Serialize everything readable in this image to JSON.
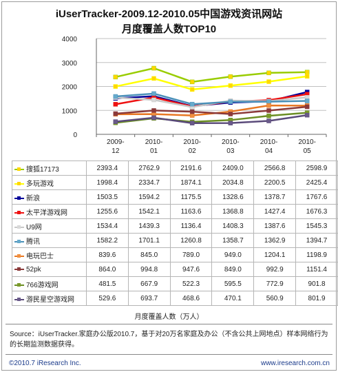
{
  "title_line1": "iUserTracker-2009.12-2010.05中国游戏资讯网站",
  "title_line2": "月度覆盖人数TOP10",
  "chart_data": {
    "type": "line",
    "title": "iUserTracker-2009.12-2010.05中国游戏资讯网站 月度覆盖人数TOP10",
    "categories": [
      "2009-12",
      "2010-01",
      "2010-02",
      "2010-03",
      "2010-04",
      "2010-05"
    ],
    "category_parts": [
      [
        "2009-",
        "12"
      ],
      [
        "2010-",
        "01"
      ],
      [
        "2010-",
        "02"
      ],
      [
        "2010-",
        "03"
      ],
      [
        "2010-",
        "04"
      ],
      [
        "2010-",
        "05"
      ]
    ],
    "y_ticks": [
      "0",
      "1000",
      "2000",
      "3000",
      "4000"
    ],
    "ylim": [
      0,
      4000
    ],
    "xlabel": "月度覆盖人数（万人）",
    "ylabel": "",
    "grid": true,
    "legend": "table-below",
    "series": [
      {
        "name": "搜狐17173",
        "color": "#99cc00",
        "marker": "#ffd700",
        "values": [
          2393.4,
          2762.9,
          2191.6,
          2409.0,
          2566.8,
          2598.9
        ],
        "labels": [
          "2393.4",
          "2762.9",
          "2191.6",
          "2409.0",
          "2566.8",
          "2598.9"
        ]
      },
      {
        "name": "多玩游戏",
        "color": "#ffff00",
        "marker": "#ffd700",
        "values": [
          1998.4,
          2334.7,
          1874.1,
          2034.8,
          2200.5,
          2425.4
        ],
        "labels": [
          "1998.4",
          "2334.7",
          "1874.1",
          "2034.8",
          "2200.5",
          "2425.4"
        ]
      },
      {
        "name": "新浪",
        "color": "#000099",
        "marker": "#000099",
        "values": [
          1503.5,
          1594.2,
          1175.5,
          1328.6,
          1378.7,
          1767.6
        ],
        "labels": [
          "1503.5",
          "1594.2",
          "1175.5",
          "1328.6",
          "1378.7",
          "1767.6"
        ]
      },
      {
        "name": "太平洋游戏网",
        "color": "#ee1111",
        "marker": "#ee1111",
        "values": [
          1255.6,
          1542.1,
          1163.6,
          1368.8,
          1427.4,
          1676.3
        ],
        "labels": [
          "1255.6",
          "1542.1",
          "1163.6",
          "1368.8",
          "1427.4",
          "1676.3"
        ]
      },
      {
        "name": "U9网",
        "color": "#c8c8c8",
        "marker": "#d9d9d9",
        "values": [
          1534.4,
          1439.3,
          1136.4,
          1408.3,
          1387.6,
          1545.3
        ],
        "labels": [
          "1534.4",
          "1439.3",
          "1136.4",
          "1408.3",
          "1387.6",
          "1545.3"
        ]
      },
      {
        "name": "腾讯",
        "color": "#4a90b8",
        "marker": "#66aacc",
        "values": [
          1582.2,
          1701.1,
          1260.8,
          1358.7,
          1362.9,
          1394.7
        ],
        "labels": [
          "1582.2",
          "1701.1",
          "1260.8",
          "1358.7",
          "1362.9",
          "1394.7"
        ]
      },
      {
        "name": "电玩巴士",
        "color": "#e87722",
        "marker": "#f09040",
        "values": [
          839.6,
          845.0,
          789.0,
          949.0,
          1204.1,
          1198.9
        ],
        "labels": [
          "839.6",
          "845.0",
          "789.0",
          "949.0",
          "1204.1",
          "1198.9"
        ]
      },
      {
        "name": "52pk",
        "color": "#8b3a3a",
        "marker": "#8b3a3a",
        "values": [
          864.0,
          994.8,
          947.6,
          849.0,
          992.9,
          1151.4
        ],
        "labels": [
          "864.0",
          "994.8",
          "947.6",
          "849.0",
          "992.9",
          "1151.4"
        ]
      },
      {
        "name": "766游戏网",
        "color": "#6b8e23",
        "marker": "#7a9a2a",
        "values": [
          481.5,
          667.9,
          522.3,
          595.5,
          772.9,
          901.8
        ],
        "labels": [
          "481.5",
          "667.9",
          "522.3",
          "595.5",
          "772.9",
          "901.8"
        ]
      },
      {
        "name": "游民星空游戏网",
        "color": "#5a4a7a",
        "marker": "#6a5a8a",
        "values": [
          529.6,
          693.7,
          468.6,
          470.1,
          560.9,
          801.9
        ],
        "labels": [
          "529.6",
          "693.7",
          "468.6",
          "470.1",
          "560.9",
          "801.9"
        ]
      }
    ]
  },
  "source_text": "Source：iUserTracker.家庭办公版2010.7，基于对20万名家庭及办公（不含公共上网地点）样本网络行为的长期监测数据获得。",
  "footer_left": "©2010.7 iResearch Inc.",
  "footer_right": "www.iresearch.com.cn"
}
